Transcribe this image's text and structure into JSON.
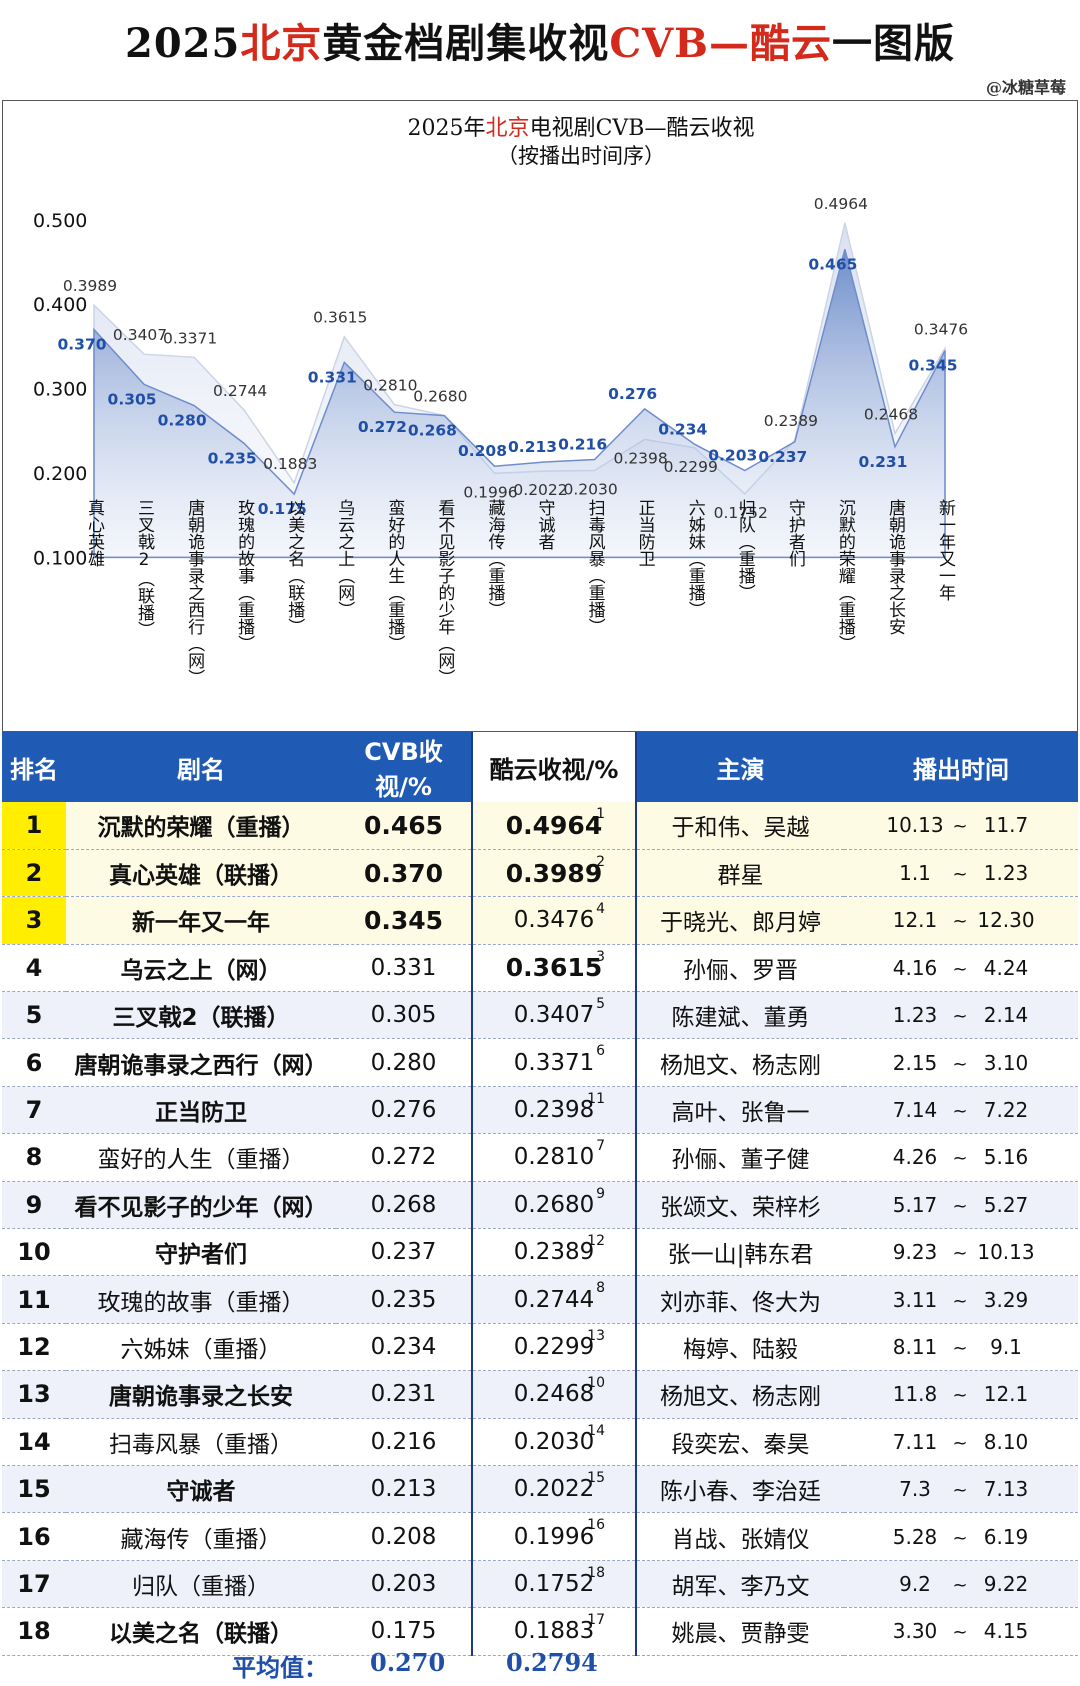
{
  "page": {
    "title_parts": [
      "2025",
      "北京",
      "黄金档剧集收视",
      "CVB—酷云",
      "一图版"
    ],
    "watermark": "@冰糖草莓"
  },
  "colors": {
    "accent_red": "#d42a1c",
    "header_blue": "#1f5bb5",
    "highlight_yellow": "#ffee00",
    "cvb_label": "#1f4fa6",
    "kuyun_label": "#333333"
  },
  "chart_data": {
    "type": "area",
    "title_parts": [
      "2025年",
      "北京",
      "电视剧CVB—酷云收视"
    ],
    "subtitle": "（按播出时间序）",
    "ylim": [
      0.1,
      0.5
    ],
    "yticks": [
      "0.100",
      "0.200",
      "0.300",
      "0.400",
      "0.500"
    ],
    "categories": [
      "真心英雄",
      "三叉戟2（联播）",
      "唐朝诡事录之西行（网）",
      "玫瑰的故事（重播）",
      "以美之名（联播）",
      "乌云之上（网）",
      "蛮好的人生（重播）",
      "看不见影子的少年（网）",
      "藏海传（重播）",
      "守诚者",
      "扫毒风暴（重播）",
      "正当防卫",
      "六姊妹（重播）",
      "归队（重播）",
      "守护者们",
      "沉默的荣耀（重播）",
      "唐朝诡事录之长安",
      "新一年又一年"
    ],
    "series": [
      {
        "name": "CVB",
        "values": [
          0.37,
          0.305,
          0.28,
          0.235,
          0.175,
          0.331,
          0.272,
          0.268,
          0.208,
          0.213,
          0.216,
          0.276,
          0.234,
          0.203,
          0.237,
          0.465,
          0.231,
          0.345
        ],
        "labels": [
          "0.370",
          "0.305",
          "0.280",
          "0.235",
          "0.175",
          "0.331",
          "0.272",
          "0.268",
          "0.208",
          "0.213",
          "0.216",
          "0.276",
          "0.234",
          "0.203",
          "0.237",
          "0.465",
          "0.231",
          "0.345"
        ]
      },
      {
        "name": "酷云",
        "values": [
          0.3989,
          0.3407,
          0.3371,
          0.2744,
          0.1883,
          0.3615,
          0.281,
          0.268,
          0.1996,
          0.2022,
          0.203,
          0.2398,
          0.2299,
          0.1752,
          0.2389,
          0.4964,
          0.2468,
          0.3476
        ],
        "labels": [
          "0.3989",
          "0.3407",
          "0.3371",
          "0.2744",
          "0.1883",
          "0.3615",
          "0.2810",
          "0.2680",
          "0.1996",
          "0.2022",
          "0.2030",
          "0.2398",
          "0.2299",
          "0.1752",
          "0.2389",
          "0.4964",
          "0.2468",
          "0.3476"
        ]
      }
    ]
  },
  "table": {
    "headers": {
      "rank": "排名",
      "name": "剧名",
      "cvb": "CVB收视/%",
      "kuyun": "酷云收视/%",
      "cast": "主演",
      "date": "播出时间"
    },
    "rows": [
      {
        "rank": "1",
        "name": "沉默的荣耀（重播）",
        "cvb": "0.465",
        "kuyun": "0.4964",
        "kuyun_rank": "1",
        "cast": "于和伟、吴越",
        "start": "10.13",
        "tilde": "~",
        "end": "11.7"
      },
      {
        "rank": "2",
        "name": "真心英雄（联播）",
        "cvb": "0.370",
        "kuyun": "0.3989",
        "kuyun_rank": "2",
        "cast": "群星",
        "start": "1.1",
        "tilde": "~",
        "end": "1.23"
      },
      {
        "rank": "3",
        "name": "新一年又一年",
        "cvb": "0.345",
        "kuyun": "0.3476",
        "kuyun_rank": "4",
        "cast": "于晓光、郎月婷",
        "start": "12.1",
        "tilde": "~",
        "end": "12.30"
      },
      {
        "rank": "4",
        "name": "乌云之上（网）",
        "cvb": "0.331",
        "kuyun": "0.3615",
        "kuyun_rank": "3",
        "cast": "孙俪、罗晋",
        "start": "4.16",
        "tilde": "~",
        "end": "4.24"
      },
      {
        "rank": "5",
        "name": "三叉戟2（联播）",
        "cvb": "0.305",
        "kuyun": "0.3407",
        "kuyun_rank": "5",
        "cast": "陈建斌、董勇",
        "start": "1.23",
        "tilde": "~",
        "end": "2.14"
      },
      {
        "rank": "6",
        "name": "唐朝诡事录之西行（网）",
        "cvb": "0.280",
        "kuyun": "0.3371",
        "kuyun_rank": "6",
        "cast": "杨旭文、杨志刚",
        "start": "2.15",
        "tilde": "~",
        "end": "3.10"
      },
      {
        "rank": "7",
        "name": "正当防卫",
        "cvb": "0.276",
        "kuyun": "0.2398",
        "kuyun_rank": "11",
        "cast": "高叶、张鲁一",
        "start": "7.14",
        "tilde": "~",
        "end": "7.22"
      },
      {
        "rank": "8",
        "name": "蛮好的人生（重播）",
        "cvb": "0.272",
        "kuyun": "0.2810",
        "kuyun_rank": "7",
        "cast": "孙俪、董子健",
        "start": "4.26",
        "tilde": "~",
        "end": "5.16"
      },
      {
        "rank": "9",
        "name": "看不见影子的少年（网）",
        "cvb": "0.268",
        "kuyun": "0.2680",
        "kuyun_rank": "9",
        "cast": "张颂文、荣梓杉",
        "start": "5.17",
        "tilde": "~",
        "end": "5.27"
      },
      {
        "rank": "10",
        "name": "守护者们",
        "cvb": "0.237",
        "kuyun": "0.2389",
        "kuyun_rank": "12",
        "cast": "张一山|韩东君",
        "start": "9.23",
        "tilde": "~",
        "end": "10.13"
      },
      {
        "rank": "11",
        "name": "玫瑰的故事（重播）",
        "cvb": "0.235",
        "kuyun": "0.2744",
        "kuyun_rank": "8",
        "cast": "刘亦菲、佟大为",
        "start": "3.11",
        "tilde": "~",
        "end": "3.29"
      },
      {
        "rank": "12",
        "name": "六姊妹（重播）",
        "cvb": "0.234",
        "kuyun": "0.2299",
        "kuyun_rank": "13",
        "cast": "梅婷、陆毅",
        "start": "8.11",
        "tilde": "~",
        "end": "9.1"
      },
      {
        "rank": "13",
        "name": "唐朝诡事录之长安",
        "cvb": "0.231",
        "kuyun": "0.2468",
        "kuyun_rank": "10",
        "cast": "杨旭文、杨志刚",
        "start": "11.8",
        "tilde": "~",
        "end": "12.1"
      },
      {
        "rank": "14",
        "name": "扫毒风暴（重播）",
        "cvb": "0.216",
        "kuyun": "0.2030",
        "kuyun_rank": "14",
        "cast": "段奕宏、秦昊",
        "start": "7.11",
        "tilde": "~",
        "end": "8.10"
      },
      {
        "rank": "15",
        "name": "守诚者",
        "cvb": "0.213",
        "kuyun": "0.2022",
        "kuyun_rank": "15",
        "cast": "陈小春、李治廷",
        "start": "7.3",
        "tilde": "~",
        "end": "7.13"
      },
      {
        "rank": "16",
        "name": "藏海传（重播）",
        "cvb": "0.208",
        "kuyun": "0.1996",
        "kuyun_rank": "16",
        "cast": "肖战、张婧仪",
        "start": "5.28",
        "tilde": "~",
        "end": "6.19"
      },
      {
        "rank": "17",
        "name": "归队（重播）",
        "cvb": "0.203",
        "kuyun": "0.1752",
        "kuyun_rank": "18",
        "cast": "胡军、李乃文",
        "start": "9.2",
        "tilde": "~",
        "end": "9.22"
      },
      {
        "rank": "18",
        "name": "以美之名（联播）",
        "cvb": "0.175",
        "kuyun": "0.1883",
        "kuyun_rank": "17",
        "cast": "姚晨、贾静雯",
        "start": "3.30",
        "tilde": "~",
        "end": "4.15"
      }
    ],
    "average": {
      "label": "平均值：",
      "cvb": "0.270",
      "kuyun": "0.2794"
    }
  }
}
